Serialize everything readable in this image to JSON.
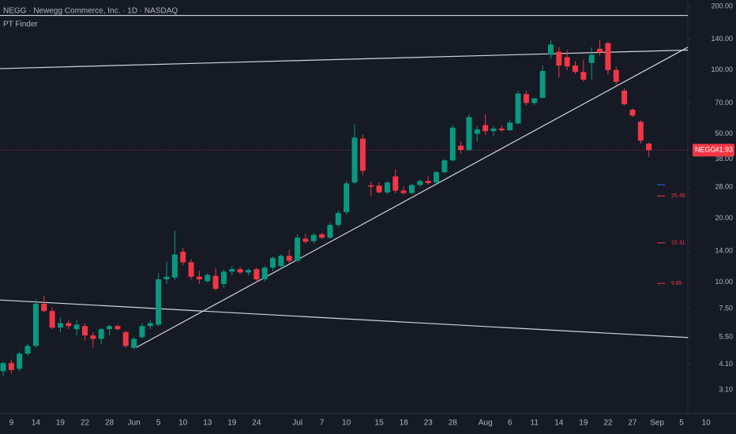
{
  "chart_data": {
    "type": "candlestick",
    "title": "NEGG · Newegg Commerce, Inc. · 1D · NASDAQ",
    "indicator": "PT Finder",
    "log_scale": true,
    "ylim": [
      2.4,
      214
    ],
    "yticks": [
      {
        "value": 200,
        "label": "200.00"
      },
      {
        "value": 140,
        "label": "140.00"
      },
      {
        "value": 100,
        "label": "100.00"
      },
      {
        "value": 70,
        "label": "70.00"
      },
      {
        "value": 50,
        "label": "50.00"
      },
      {
        "value": 38,
        "label": "38.00"
      },
      {
        "value": 28,
        "label": "28.00"
      },
      {
        "value": 20,
        "label": "20.00"
      },
      {
        "value": 14,
        "label": "14.00"
      },
      {
        "value": 10,
        "label": "10.00"
      },
      {
        "value": 7.5,
        "label": "7.50"
      },
      {
        "value": 5.5,
        "label": "5.50"
      },
      {
        "value": 4.1,
        "label": "4.10"
      },
      {
        "value": 3.1,
        "label": "3.10"
      }
    ],
    "categories": [
      null,
      "9",
      null,
      null,
      "14",
      null,
      null,
      "19",
      null,
      null,
      "22",
      null,
      null,
      "28",
      null,
      null,
      "Jun",
      null,
      null,
      "5",
      null,
      null,
      "10",
      null,
      null,
      "13",
      null,
      null,
      "19",
      null,
      null,
      "24",
      null,
      null,
      null,
      null,
      "Jul",
      null,
      null,
      "7",
      null,
      null,
      "10",
      null,
      null,
      null,
      "15",
      null,
      null,
      "18",
      null,
      null,
      "23",
      null,
      null,
      "28",
      null,
      null,
      null,
      "Aug",
      null,
      null,
      "6",
      null,
      null,
      "11",
      null,
      null,
      "14",
      null,
      null,
      "19",
      null,
      null,
      "22",
      null,
      null,
      "27",
      null,
      null,
      "Sep",
      null,
      null,
      "5",
      null,
      null,
      "10"
    ],
    "open": [
      3.8,
      4.15,
      3.9,
      4.6,
      5.0,
      7.9,
      7.3,
      6.1,
      6.4,
      6.0,
      6.2,
      5.6,
      5.4,
      6.0,
      6.2,
      5.8,
      4.9,
      5.5,
      6.2,
      6.3,
      10.3,
      10.5,
      13.9,
      12.4,
      10.6,
      10.1,
      10.7,
      9.8,
      11.2,
      11.5,
      11.1,
      11.5,
      10.3,
      11.7,
      11.9,
      13.3,
      12.6,
      16.0,
      15.6,
      16.8,
      16.2,
      18.6,
      21.4,
      29.5,
      47.5,
      28.6,
      28.5,
      26.5,
      31.5,
      27.0,
      26.3,
      28.7,
      30.0,
      29.5,
      33.0,
      37.5,
      44.0,
      42.0,
      50.0,
      55.0,
      51.5,
      53.0,
      52.0,
      56.0,
      77.0,
      70.0,
      74.0,
      118,
      122,
      115,
      105,
      98,
      108,
      126,
      134,
      100,
      80,
      65,
      57,
      45,
      null,
      null,
      null,
      null,
      null,
      null,
      null
    ],
    "high": [
      4.2,
      4.3,
      4.7,
      5.1,
      8.3,
      8.6,
      7.6,
      6.8,
      6.6,
      6.6,
      6.4,
      5.8,
      6.1,
      6.3,
      6.3,
      5.9,
      5.5,
      6.4,
      6.6,
      11.0,
      12.5,
      17.4,
      14.5,
      12.8,
      11.3,
      11.0,
      11.6,
      11.5,
      11.9,
      11.8,
      11.6,
      11.7,
      11.9,
      13.2,
      13.5,
      14.2,
      16.8,
      16.9,
      17.1,
      17.1,
      19.0,
      21.8,
      30.0,
      55.5,
      49.5,
      29.8,
      29.5,
      30.0,
      34.0,
      28.2,
      29.0,
      30.5,
      31.5,
      33.5,
      38.0,
      55.0,
      46.0,
      62.0,
      54.5,
      62.0,
      54.5,
      55.0,
      58.0,
      80.0,
      80.0,
      74.0,
      105,
      138,
      128,
      124,
      110,
      112,
      128,
      139,
      136,
      104,
      82,
      66,
      58,
      45.5,
      null,
      null,
      null,
      null,
      null,
      null,
      null
    ],
    "low": [
      3.6,
      3.7,
      3.8,
      4.5,
      4.9,
      7.2,
      6.0,
      5.8,
      6.0,
      5.6,
      5.3,
      4.9,
      5.1,
      5.6,
      5.9,
      4.9,
      4.8,
      5.4,
      6.0,
      6.2,
      9.8,
      10.2,
      12.0,
      10.3,
      9.8,
      9.9,
      9.1,
      9.4,
      10.8,
      10.9,
      10.8,
      10.0,
      10.1,
      11.3,
      11.5,
      12.3,
      12.4,
      15.2,
      15.2,
      16.0,
      16.0,
      18.2,
      20.8,
      29.0,
      32.0,
      25.5,
      26.2,
      26.0,
      26.2,
      25.8,
      26.0,
      28.0,
      28.8,
      29.2,
      32.5,
      37.0,
      40.5,
      41.5,
      46.0,
      49.5,
      49.0,
      51.0,
      51.5,
      55.5,
      68.0,
      68.5,
      73.5,
      113,
      92,
      100,
      96,
      88,
      90,
      117,
      95,
      85,
      68,
      60,
      45,
      39,
      null,
      null,
      null,
      null,
      null,
      null,
      null
    ],
    "close": [
      4.15,
      3.85,
      4.6,
      5.0,
      7.9,
      7.3,
      6.1,
      6.4,
      6.2,
      6.3,
      5.6,
      5.4,
      6.0,
      6.2,
      6.0,
      5.0,
      5.4,
      6.2,
      6.4,
      10.3,
      10.6,
      13.5,
      12.4,
      10.6,
      10.3,
      10.8,
      9.3,
      11.2,
      11.5,
      11.1,
      11.4,
      10.3,
      11.7,
      13.0,
      13.3,
      12.6,
      16.2,
      15.5,
      16.7,
      16.2,
      18.6,
      21.2,
      29.2,
      48.0,
      33.5,
      28.2,
      26.5,
      29.5,
      27.0,
      26.3,
      28.7,
      30.0,
      29.3,
      33.0,
      37.5,
      53.5,
      42.0,
      60.0,
      52.5,
      51.5,
      53.0,
      52.0,
      56.5,
      77.5,
      70.0,
      73.5,
      99.0,
      132,
      105,
      104,
      98,
      90,
      118,
      121,
      100,
      88,
      69,
      61,
      46.5,
      41.93,
      null,
      null,
      null,
      null,
      null,
      null,
      null
    ],
    "up_color": "#089981",
    "down_color": "#f23645",
    "trendlines": [
      {
        "x": [
          -0.4,
          89.7
        ],
        "y": [
          101.6,
          126
        ],
        "color": "#d1d4dc"
      },
      {
        "x": [
          -0.4,
          86.6
        ],
        "y": [
          8.23,
          5.4
        ],
        "color": "#d1d4dc"
      },
      {
        "x": [
          16.3,
          86.6
        ],
        "y": [
          4.92,
          147
        ],
        "color": "#d1d4dc"
      },
      {
        "x": [
          -0.4,
          86.6
        ],
        "y": [
          181,
          181
        ],
        "color": "#d1d4dc"
      }
    ],
    "last_price": {
      "symbol": "NEGG",
      "value": 41.93,
      "color": "#f23645"
    },
    "price_targets": {
      "values": [
        25.49,
        15.31,
        9.85
      ],
      "color": "#f23645"
    },
    "marker": {
      "value": 28.8,
      "color": "#2962ff"
    }
  }
}
